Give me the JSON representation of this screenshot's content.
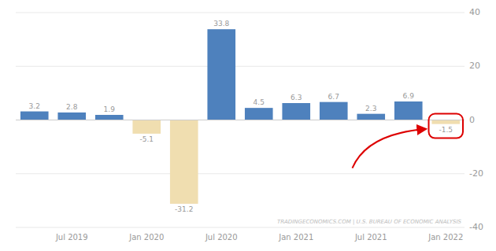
{
  "chart_data": {
    "type": "bar",
    "categories": [
      null,
      "Jul 2019",
      null,
      "Jan 2020",
      null,
      "Jul 2020",
      null,
      "Jan 2021",
      null,
      "Jul 2021",
      null,
      "Jan 2022"
    ],
    "values": [
      3.2,
      2.8,
      1.9,
      -5.1,
      -31.2,
      33.8,
      4.5,
      6.3,
      6.7,
      2.3,
      6.9,
      -1.5
    ],
    "colors": [
      "#4e81bd",
      "#4e81bd",
      "#4e81bd",
      "#f0deb0",
      "#f0deb0",
      "#4e81bd",
      "#4e81bd",
      "#4e81bd",
      "#4e81bd",
      "#4e81bd",
      "#4e81bd",
      "#f0deb0"
    ],
    "ylim": [
      -40,
      40
    ],
    "yticks": [
      -40,
      -20,
      0,
      20,
      40
    ],
    "grid": true,
    "data_labels": true,
    "annotation": "TRADINGECONOMICS.COM | U.S. BUREAU OF ECONOMIC ANALYSIS"
  }
}
